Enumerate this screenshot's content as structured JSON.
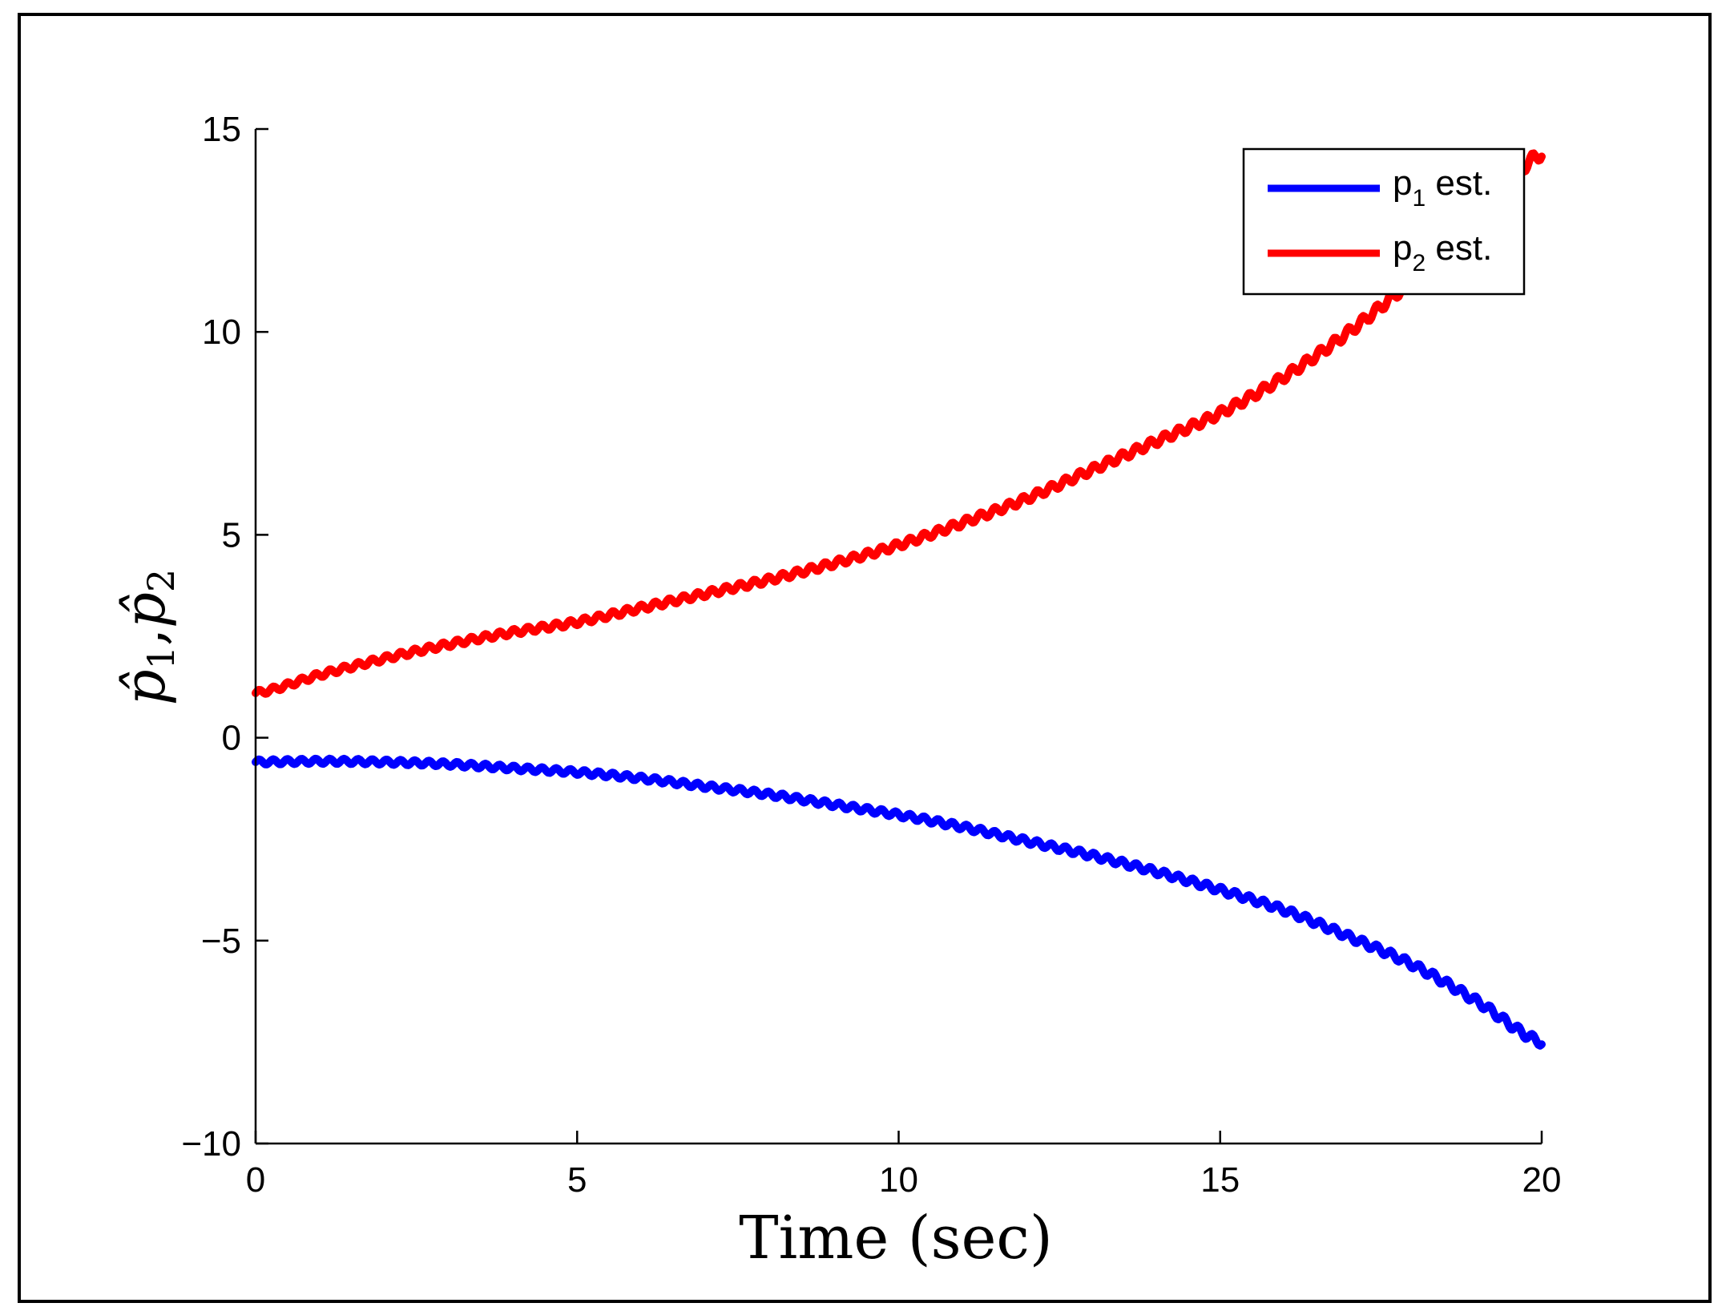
{
  "chart_data": {
    "type": "line",
    "xlabel": "Time (sec)",
    "ylabel": {
      "base": "p̂",
      "sub1": "1",
      "sep": ",",
      "sub2": "2"
    },
    "xlim": [
      0,
      20
    ],
    "ylim": [
      -10,
      15
    ],
    "xticks": [
      0,
      5,
      10,
      15,
      20
    ],
    "yticks": [
      -10,
      -5,
      0,
      5,
      10,
      15
    ],
    "xtick_labels": [
      "0",
      "5",
      "10",
      "15",
      "20"
    ],
    "ytick_labels": [
      "−10",
      "−5",
      "0",
      "5",
      "10",
      "15"
    ],
    "grid": false,
    "legend_position": "top-right",
    "series": [
      {
        "name": "p1 est.",
        "legend_main": "p",
        "legend_sub": "1",
        "legend_suffix": " est.",
        "color": "#0000ff",
        "x": [
          0,
          1,
          2,
          3,
          4,
          5,
          6,
          7,
          8,
          9,
          10,
          11,
          12,
          13,
          14,
          15,
          16,
          17,
          18,
          19,
          20
        ],
        "y": [
          -0.6,
          -0.58,
          -0.6,
          -0.65,
          -0.75,
          -0.85,
          -1.0,
          -1.2,
          -1.4,
          -1.65,
          -1.9,
          -2.2,
          -2.55,
          -2.9,
          -3.3,
          -3.75,
          -4.25,
          -4.9,
          -5.6,
          -6.5,
          -7.5
        ]
      },
      {
        "name": "p2 est.",
        "legend_main": "p",
        "legend_sub": "2",
        "legend_suffix": " est.",
        "color": "#ff0000",
        "x": [
          0,
          1,
          2,
          3,
          4,
          5,
          6,
          7,
          8,
          9,
          10,
          11,
          12,
          13,
          14,
          15,
          16,
          17,
          18,
          19,
          20
        ],
        "y": [
          1.1,
          1.55,
          1.95,
          2.3,
          2.6,
          2.85,
          3.2,
          3.55,
          3.9,
          4.3,
          4.75,
          5.3,
          5.9,
          6.6,
          7.3,
          8.0,
          8.9,
          10.0,
          11.3,
          12.8,
          14.4
        ]
      }
    ]
  }
}
